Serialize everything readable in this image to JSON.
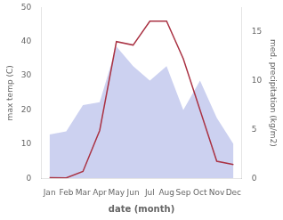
{
  "chart_data": {
    "type": "line",
    "categories": [
      "Jan",
      "Feb",
      "Mar",
      "Apr",
      "May",
      "Jun",
      "Jul",
      "Aug",
      "Sep",
      "Oct",
      "Nov",
      "Dec"
    ],
    "series": [
      {
        "type": "area",
        "color": "#b0b8e8",
        "axis": "y2",
        "values": [
          4.5,
          4.8,
          7.5,
          7.8,
          13.5,
          11.5,
          10.0,
          11.5,
          7.0,
          10.0,
          6.2,
          3.5
        ]
      },
      {
        "type": "line",
        "color": "#aa3344",
        "values": [
          0.2,
          0.1,
          2,
          14,
          40,
          39,
          46,
          46,
          35,
          20,
          5,
          4
        ]
      }
    ],
    "xlabel": "date (month)",
    "ylabel": "max temp (C)",
    "y2label": "med. precipitation (kg/m2)",
    "ylim": [
      0,
      50
    ],
    "yticks": [
      0,
      10,
      20,
      30,
      40,
      50
    ],
    "y2lim": [
      0,
      17.5
    ],
    "y2ticks": [
      0,
      5,
      10,
      15
    ],
    "grid": false
  }
}
